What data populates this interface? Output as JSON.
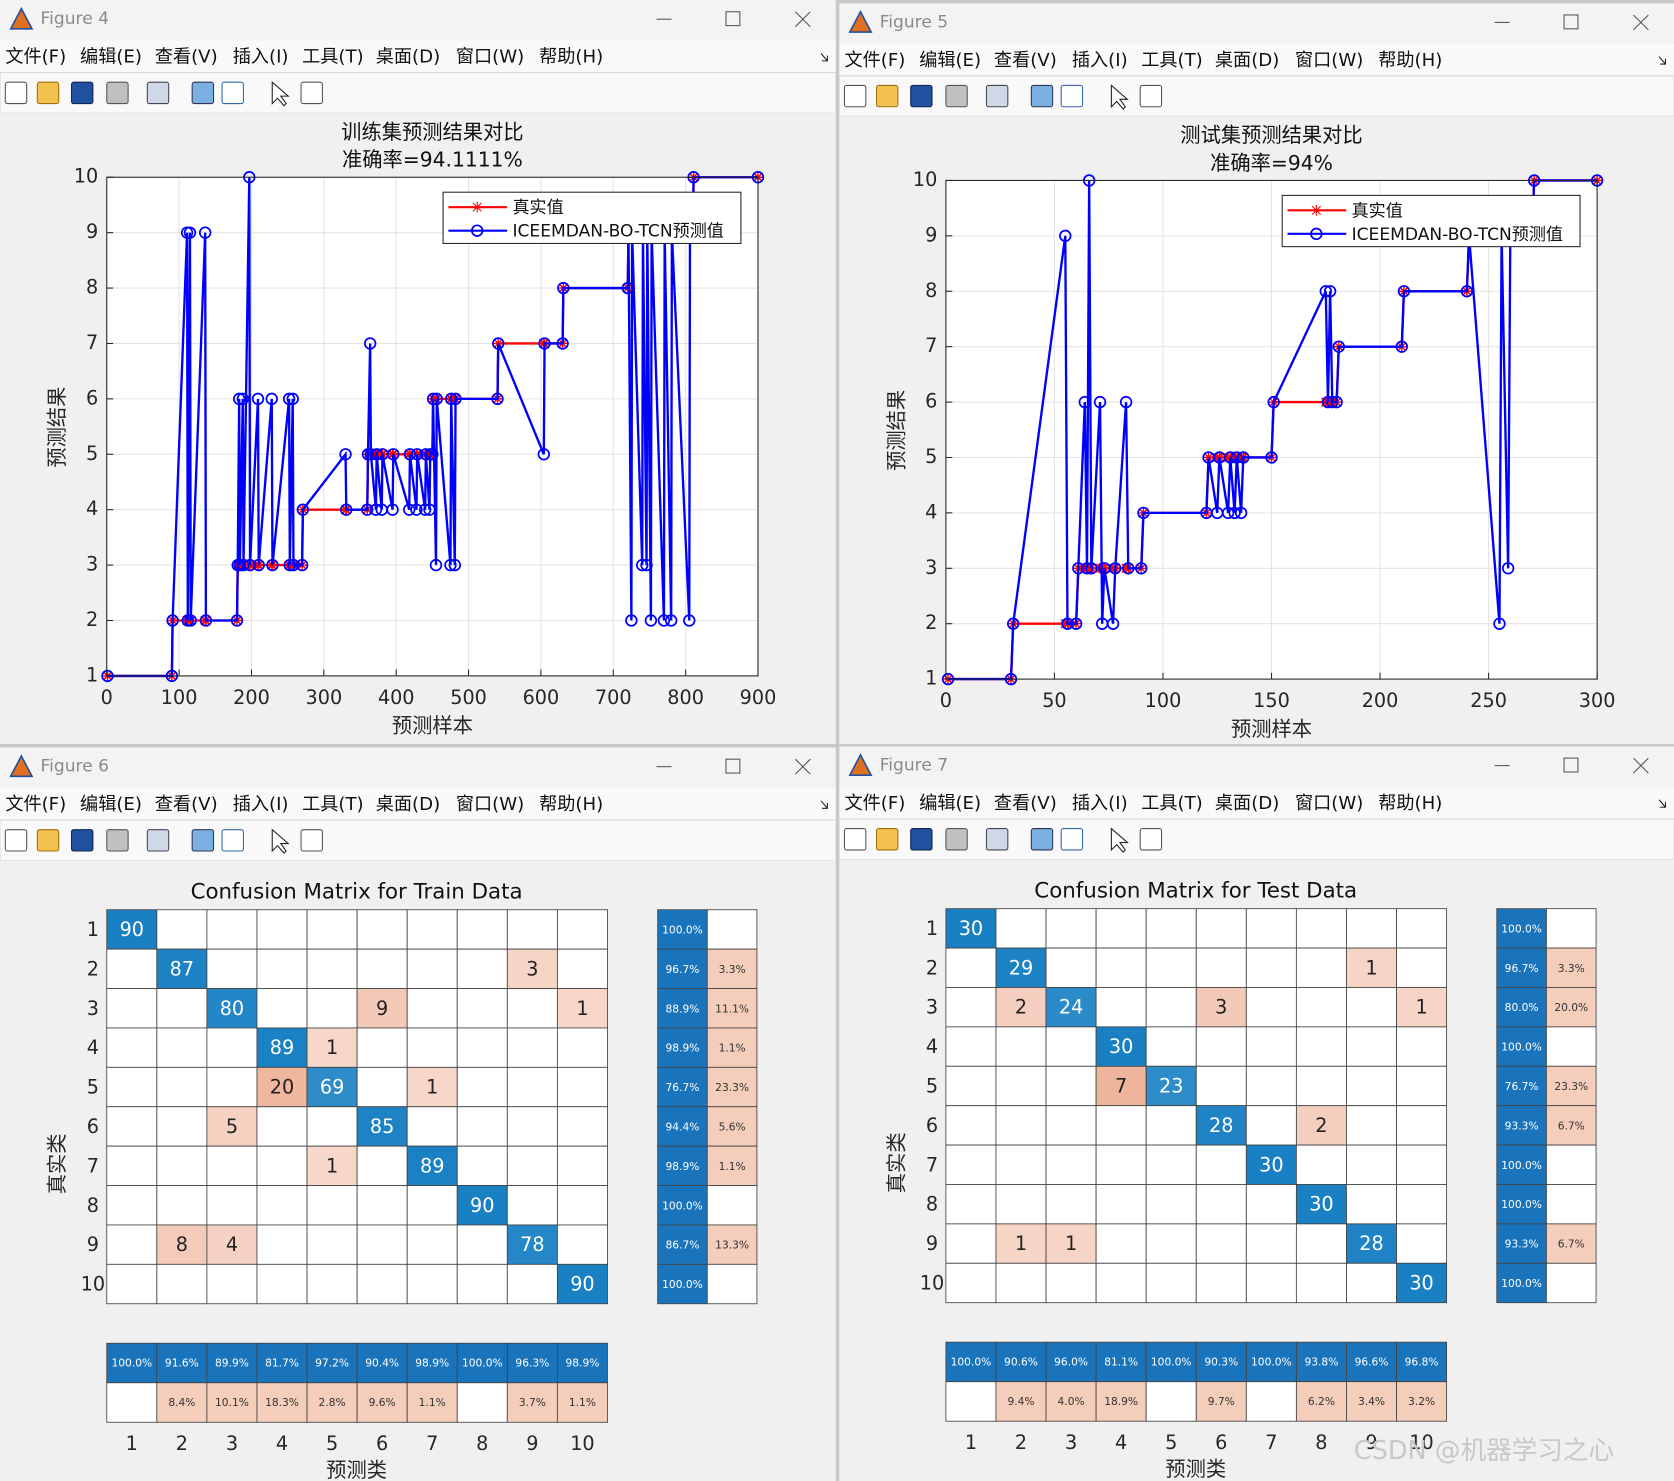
{
  "windows": [
    {
      "title": "Figure 4",
      "menu": [
        "文件(F)",
        "编辑(E)",
        "查看(V)",
        "插入(I)",
        "工具(T)",
        "桌面(D)",
        "窗口(W)",
        "帮助(H)"
      ],
      "chart_data": {
        "type": "line",
        "title": "训练集预测结果对比",
        "subtitle": "准确率=94.1111%",
        "x_label": "预测样本",
        "y_label": "预测结果",
        "x": [
          1,
          90,
          91,
          111,
          112,
          115,
          116,
          136,
          137,
          180,
          181,
          183,
          184,
          188,
          189,
          197,
          198,
          209,
          210,
          228,
          229,
          252,
          253,
          257,
          258,
          270,
          271,
          330,
          331,
          360,
          361,
          364,
          365,
          372,
          373,
          380,
          381,
          395,
          396,
          418,
          419,
          428,
          429,
          440,
          441,
          446,
          447,
          450,
          451,
          455,
          456,
          475,
          476,
          481,
          482,
          540,
          541,
          604,
          605,
          630,
          631,
          720,
          721,
          725,
          726,
          740,
          741,
          746,
          747,
          752,
          753,
          770,
          771,
          780,
          781,
          805,
          806,
          810,
          811,
          900
        ],
        "series": [
          {
            "name": "真实值",
            "color": "#ff0000",
            "marker": "*",
            "values": [
              1,
              1,
              2,
              2,
              2,
              2,
              2,
              2,
              2,
              2,
              3,
              3,
              3,
              3,
              3,
              3,
              3,
              3,
              3,
              3,
              3,
              3,
              3,
              3,
              3,
              3,
              4,
              4,
              4,
              4,
              5,
              5,
              5,
              5,
              5,
              5,
              5,
              5,
              5,
              5,
              5,
              5,
              5,
              5,
              5,
              5,
              5,
              5,
              6,
              6,
              6,
              6,
              6,
              6,
              6,
              6,
              7,
              7,
              7,
              7,
              8,
              8,
              9,
              9,
              9,
              9,
              9,
              9,
              9,
              9,
              9,
              9,
              9,
              9,
              9,
              9,
              9,
              9,
              10,
              10
            ]
          },
          {
            "name": "ICEEMDAN-BO-TCN预测值",
            "color": "#0000ff",
            "marker": "o",
            "values": [
              1,
              1,
              2,
              9,
              2,
              9,
              2,
              9,
              2,
              2,
              3,
              6,
              3,
              6,
              3,
              10,
              3,
              6,
              3,
              6,
              3,
              6,
              3,
              6,
              3,
              3,
              4,
              5,
              4,
              4,
              5,
              7,
              5,
              4,
              5,
              4,
              5,
              4,
              5,
              4,
              5,
              4,
              5,
              4,
              5,
              4,
              5,
              5,
              6,
              3,
              6,
              3,
              6,
              3,
              6,
              6,
              7,
              5,
              7,
              7,
              8,
              8,
              9,
              2,
              9,
              3,
              9,
              3,
              9,
              2,
              9,
              2,
              9,
              2,
              9,
              2,
              9,
              9,
              10,
              10
            ]
          }
        ],
        "xlim": [
          0,
          900
        ],
        "xticks": [
          0,
          100,
          200,
          300,
          400,
          500,
          600,
          700,
          800,
          900
        ],
        "ylim": [
          1,
          10
        ],
        "yticks": [
          1,
          2,
          3,
          4,
          5,
          6,
          7,
          8,
          9,
          10
        ],
        "grid": true,
        "legend": "upper right"
      }
    },
    {
      "title": "Figure 5",
      "menu": [
        "文件(F)",
        "编辑(E)",
        "查看(V)",
        "插入(I)",
        "工具(T)",
        "桌面(D)",
        "窗口(W)",
        "帮助(H)"
      ],
      "chart_data": {
        "type": "line",
        "title": "测试集预测结果对比",
        "subtitle": "准确率=94%",
        "x_label": "预测样本",
        "y_label": "预测结果",
        "x": [
          1,
          30,
          31,
          55,
          56,
          60,
          61,
          64,
          65,
          66,
          67,
          71,
          72,
          73,
          77,
          78,
          83,
          84,
          90,
          91,
          120,
          121,
          125,
          126,
          130,
          131,
          133,
          134,
          136,
          137,
          150,
          151,
          175,
          176,
          177,
          178,
          180,
          181,
          210,
          211,
          240,
          241,
          255,
          256,
          259,
          260,
          270,
          271,
          300
        ],
        "series": [
          {
            "name": "真实值",
            "color": "#ff0000",
            "marker": "*",
            "values": [
              1,
              1,
              2,
              2,
              2,
              2,
              3,
              3,
              3,
              3,
              3,
              3,
              3,
              3,
              3,
              3,
              3,
              3,
              3,
              4,
              4,
              5,
              5,
              5,
              5,
              5,
              5,
              5,
              5,
              5,
              5,
              6,
              6,
              6,
              6,
              6,
              6,
              7,
              7,
              8,
              8,
              9,
              9,
              9,
              9,
              9,
              9,
              10,
              10
            ]
          },
          {
            "name": "ICEEMDAN-BO-TCN预测值",
            "color": "#0000ff",
            "marker": "o",
            "values": [
              1,
              1,
              2,
              9,
              2,
              2,
              3,
              6,
              3,
              10,
              3,
              6,
              2,
              3,
              2,
              3,
              6,
              3,
              3,
              4,
              4,
              5,
              4,
              5,
              4,
              5,
              4,
              5,
              4,
              5,
              5,
              6,
              8,
              6,
              8,
              6,
              6,
              7,
              7,
              8,
              8,
              9,
              2,
              9,
              3,
              9,
              9,
              10,
              10
            ]
          }
        ],
        "xlim": [
          0,
          300
        ],
        "xticks": [
          0,
          50,
          100,
          150,
          200,
          250,
          300
        ],
        "ylim": [
          1,
          10
        ],
        "yticks": [
          1,
          2,
          3,
          4,
          5,
          6,
          7,
          8,
          9,
          10
        ],
        "grid": true,
        "legend": "upper right"
      }
    },
    {
      "title": "Figure 6",
      "menu": [
        "文件(F)",
        "编辑(E)",
        "查看(V)",
        "插入(I)",
        "工具(T)",
        "桌面(D)",
        "窗口(W)",
        "帮助(H)"
      ],
      "chart_data": {
        "type": "confusion",
        "title": "Confusion Matrix for Train Data",
        "x_label": "预测类",
        "y_label": "真实类",
        "classes": [
          1,
          2,
          3,
          4,
          5,
          6,
          7,
          8,
          9,
          10
        ],
        "matrix": [
          [
            90,
            null,
            null,
            null,
            null,
            null,
            null,
            null,
            null,
            null
          ],
          [
            null,
            87,
            null,
            null,
            null,
            null,
            null,
            null,
            3,
            null
          ],
          [
            null,
            null,
            80,
            null,
            null,
            9,
            null,
            null,
            null,
            1
          ],
          [
            null,
            null,
            null,
            89,
            1,
            null,
            null,
            null,
            null,
            null
          ],
          [
            null,
            null,
            null,
            20,
            69,
            null,
            1,
            null,
            null,
            null
          ],
          [
            null,
            null,
            5,
            null,
            null,
            85,
            null,
            null,
            null,
            null
          ],
          [
            null,
            null,
            null,
            null,
            1,
            null,
            89,
            null,
            null,
            null
          ],
          [
            null,
            null,
            null,
            null,
            null,
            null,
            null,
            90,
            null,
            null
          ],
          [
            null,
            8,
            4,
            null,
            null,
            null,
            null,
            null,
            78,
            null
          ],
          [
            null,
            null,
            null,
            null,
            null,
            null,
            null,
            null,
            null,
            90
          ]
        ],
        "row_summary": [
          [
            "100.0%",
            null
          ],
          [
            "96.7%",
            "3.3%"
          ],
          [
            "88.9%",
            "11.1%"
          ],
          [
            "98.9%",
            "1.1%"
          ],
          [
            "76.7%",
            "23.3%"
          ],
          [
            "94.4%",
            "5.6%"
          ],
          [
            "98.9%",
            "1.1%"
          ],
          [
            "100.0%",
            null
          ],
          [
            "86.7%",
            "13.3%"
          ],
          [
            "100.0%",
            null
          ]
        ],
        "column_summary": [
          [
            "100.0%",
            "91.6%",
            "89.9%",
            "81.7%",
            "97.2%",
            "90.4%",
            "98.9%",
            "100.0%",
            "96.3%",
            "98.9%"
          ],
          [
            null,
            "8.4%",
            "10.1%",
            "18.3%",
            "2.8%",
            "9.6%",
            "1.1%",
            null,
            "3.7%",
            "1.1%"
          ]
        ]
      }
    },
    {
      "title": "Figure 7",
      "menu": [
        "文件(F)",
        "编辑(E)",
        "查看(V)",
        "插入(I)",
        "工具(T)",
        "桌面(D)",
        "窗口(W)",
        "帮助(H)"
      ],
      "chart_data": {
        "type": "confusion",
        "title": "Confusion Matrix for Test Data",
        "x_label": "预测类",
        "y_label": "真实类",
        "classes": [
          1,
          2,
          3,
          4,
          5,
          6,
          7,
          8,
          9,
          10
        ],
        "matrix": [
          [
            30,
            null,
            null,
            null,
            null,
            null,
            null,
            null,
            null,
            null
          ],
          [
            null,
            29,
            null,
            null,
            null,
            null,
            null,
            null,
            1,
            null
          ],
          [
            null,
            2,
            24,
            null,
            null,
            3,
            null,
            null,
            null,
            1
          ],
          [
            null,
            null,
            null,
            30,
            null,
            null,
            null,
            null,
            null,
            null
          ],
          [
            null,
            null,
            null,
            7,
            23,
            null,
            null,
            null,
            null,
            null
          ],
          [
            null,
            null,
            null,
            null,
            null,
            28,
            null,
            2,
            null,
            null
          ],
          [
            null,
            null,
            null,
            null,
            null,
            null,
            30,
            null,
            null,
            null
          ],
          [
            null,
            null,
            null,
            null,
            null,
            null,
            null,
            30,
            null,
            null
          ],
          [
            null,
            1,
            1,
            null,
            null,
            null,
            null,
            null,
            28,
            null
          ],
          [
            null,
            null,
            null,
            null,
            null,
            null,
            null,
            null,
            null,
            30
          ]
        ],
        "row_summary": [
          [
            "100.0%",
            null
          ],
          [
            "96.7%",
            "3.3%"
          ],
          [
            "80.0%",
            "20.0%"
          ],
          [
            "100.0%",
            null
          ],
          [
            "76.7%",
            "23.3%"
          ],
          [
            "93.3%",
            "6.7%"
          ],
          [
            "100.0%",
            null
          ],
          [
            "100.0%",
            null
          ],
          [
            "93.3%",
            "6.7%"
          ],
          [
            "100.0%",
            null
          ]
        ],
        "column_summary": [
          [
            "100.0%",
            "90.6%",
            "96.0%",
            "81.1%",
            "100.0%",
            "90.3%",
            "100.0%",
            "93.8%",
            "96.6%",
            "96.8%"
          ],
          [
            null,
            "9.4%",
            "4.0%",
            "18.9%",
            null,
            "9.7%",
            null,
            "6.2%",
            "3.4%",
            "3.2%"
          ]
        ]
      }
    }
  ],
  "signature": "CSDN @机器学习之心"
}
